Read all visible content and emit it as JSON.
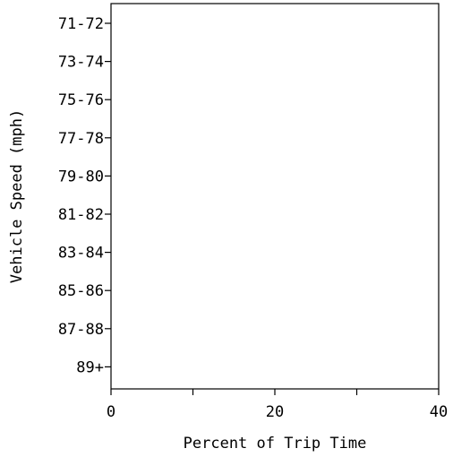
{
  "chart_data": {
    "type": "bar",
    "orientation": "horizontal",
    "categories": [
      "71-72",
      "73-74",
      "75-76",
      "77-78",
      "79-80",
      "81-82",
      "83-84",
      "85-86",
      "87-88",
      "89+"
    ],
    "values": [
      0,
      0,
      0,
      0,
      0,
      0,
      0,
      0,
      0,
      0
    ],
    "xlabel": "Percent of Trip Time",
    "ylabel": "Vehicle Speed (mph)",
    "xlim": [
      0,
      40
    ],
    "x_ticks": [
      0,
      10,
      20,
      30,
      40
    ],
    "x_tick_labels": [
      "0",
      "",
      "20",
      "",
      "40"
    ],
    "grid": false,
    "frame": "box"
  }
}
